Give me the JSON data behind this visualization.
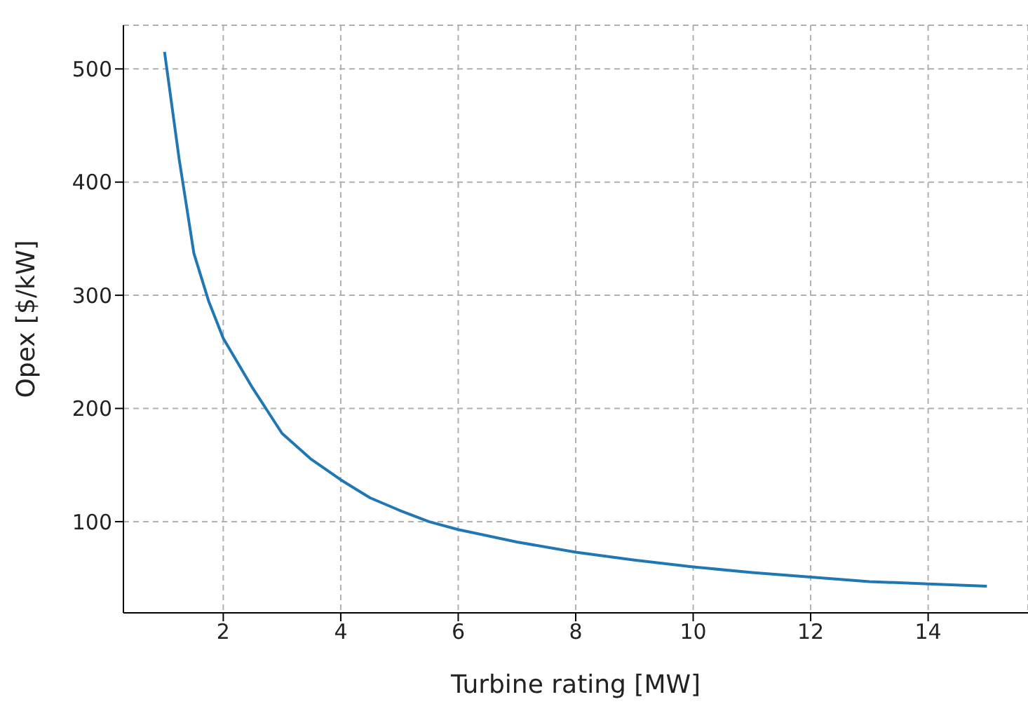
{
  "chart_data": {
    "type": "line",
    "xlabel": "Turbine rating [MW]",
    "ylabel": "Opex [$/kW]",
    "series": [
      {
        "color": "#1f77b4",
        "x": [
          1,
          1.25,
          1.5,
          1.75,
          2,
          2.5,
          3,
          3.5,
          4,
          4.5,
          5,
          5.5,
          6,
          7,
          8,
          9,
          10,
          11,
          12,
          13,
          14,
          15
        ],
        "values": [
          515,
          420,
          337,
          295,
          262,
          218,
          178,
          155,
          137,
          121,
          110,
          100,
          93,
          82,
          73,
          66,
          60,
          55,
          51,
          47,
          45,
          43
        ]
      }
    ],
    "xlim": [
      0.3,
      15.7
    ],
    "xticks": [
      2,
      4,
      6,
      8,
      10,
      12,
      14
    ],
    "ylim": [
      19.4,
      538.6
    ],
    "yticks": [
      100,
      200,
      300,
      400,
      500
    ],
    "grid": true,
    "marker": "none",
    "line_style": "solid"
  }
}
